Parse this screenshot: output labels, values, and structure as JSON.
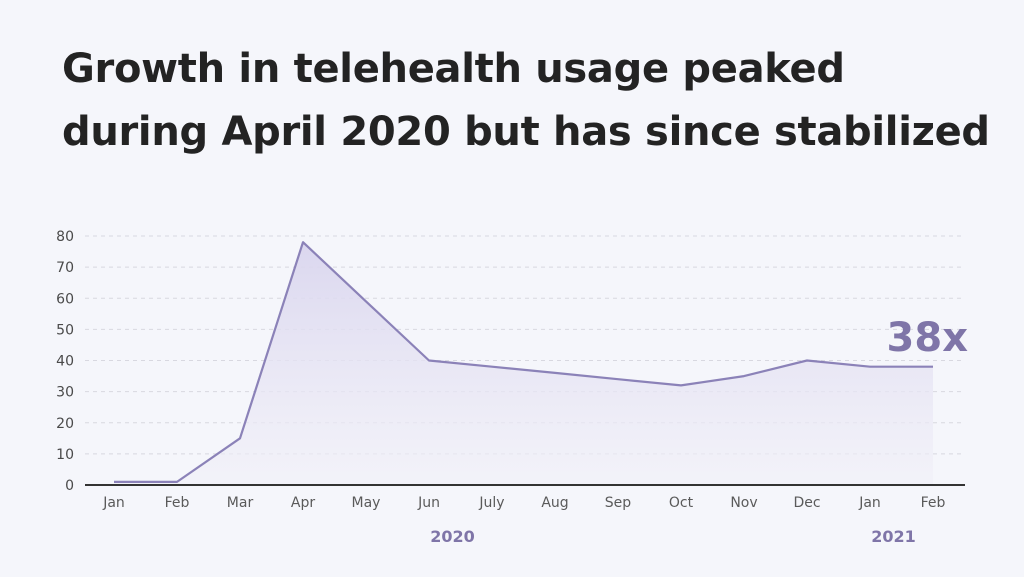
{
  "header": {
    "title_line1": "Growth in telehealth usage peaked",
    "title_line2": "during April 2020 but has since stabilized"
  },
  "colors": {
    "line": "#8b82b8",
    "fill_top": "#d9d5ee",
    "fill_bottom": "#f1f0f8",
    "accent": "#7f75a8",
    "grid": "#d8d8e0",
    "axis": "#333333"
  },
  "chart_data": {
    "type": "area",
    "title": "Growth in telehealth usage peaked during April 2020 but has since stabilized",
    "xlabel": "",
    "ylabel": "",
    "categories": [
      "Jan",
      "Feb",
      "Mar",
      "Apr",
      "May",
      "Jun",
      "July",
      "Aug",
      "Sep",
      "Oct",
      "Nov",
      "Dec",
      "Jan",
      "Feb"
    ],
    "values": [
      1,
      1,
      15,
      78,
      59,
      40,
      38,
      36,
      34,
      32,
      35,
      40,
      38,
      38
    ],
    "ylim": [
      0,
      80
    ],
    "yticks": [
      0,
      10,
      20,
      30,
      40,
      50,
      60,
      70,
      80
    ],
    "year_labels": [
      {
        "label": "2020",
        "under_category_index": 5.5
      },
      {
        "label": "2021",
        "under_category_index": 12.5
      }
    ],
    "annotation": "38x",
    "grid": "horizontal dashed",
    "legend": "none"
  }
}
